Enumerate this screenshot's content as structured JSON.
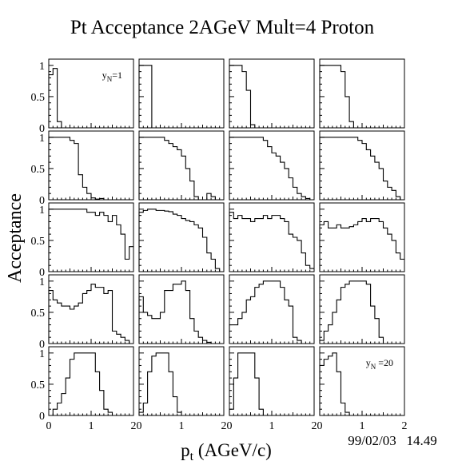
{
  "title": "Pt Acceptance 2AGeV Mult=4 Proton",
  "xlabel_main": "p",
  "xlabel_sub": "t",
  "xlabel_rest": " (AGeV/c)",
  "ylabel": "Acceptance",
  "datestamp": "99/02/03   14.49",
  "chart_data": {
    "type": "histogram-grid",
    "rows": 5,
    "cols": 4,
    "xlim": [
      0,
      2
    ],
    "ylim": [
      0,
      1.1
    ],
    "bin_width": 0.1,
    "x_ticks": [
      {
        "v": 0,
        "label": "0"
      },
      {
        "v": 1,
        "label": "1"
      },
      {
        "v": 2,
        "label": "2"
      }
    ],
    "y_ticks": [
      {
        "v": 0,
        "label": "0"
      },
      {
        "v": 0.5,
        "label": "0.5"
      },
      {
        "v": 1,
        "label": "1"
      }
    ],
    "annotations": [
      {
        "panel": 0,
        "main": "y",
        "sub": "N",
        "rest": "=1"
      },
      {
        "panel": 19,
        "main": "y",
        "sub": "N",
        "rest": " =20"
      }
    ],
    "panels": [
      {
        "values": [
          0.85,
          0.95,
          0.1,
          0,
          0,
          0,
          0,
          0,
          0,
          0,
          0,
          0,
          0,
          0,
          0,
          0,
          0,
          0,
          0,
          0
        ]
      },
      {
        "values": [
          1,
          1,
          1,
          0,
          0,
          0,
          0,
          0,
          0,
          0,
          0,
          0,
          0,
          0,
          0,
          0,
          0,
          0,
          0,
          0
        ]
      },
      {
        "values": [
          1,
          1,
          1,
          0.9,
          0.6,
          0.05,
          0,
          0,
          0,
          0,
          0,
          0,
          0,
          0,
          0,
          0,
          0,
          0,
          0,
          0
        ]
      },
      {
        "values": [
          1,
          1,
          1,
          1,
          1,
          0.9,
          0.5,
          0.1,
          0,
          0,
          0,
          0,
          0,
          0,
          0,
          0,
          0,
          0,
          0,
          0
        ]
      },
      {
        "values": [
          1,
          1,
          1,
          1,
          1,
          0.95,
          0.9,
          0.4,
          0.2,
          0.1,
          0.03,
          0.01,
          0.02,
          0,
          0,
          0,
          0,
          0,
          0,
          0
        ]
      },
      {
        "values": [
          1,
          1,
          1,
          1,
          1,
          1,
          0.95,
          0.9,
          0.85,
          0.8,
          0.7,
          0.5,
          0.3,
          0.05,
          0,
          0,
          0.1,
          0.05,
          0,
          0
        ]
      },
      {
        "values": [
          1,
          1,
          1,
          1,
          1,
          1,
          1,
          1,
          0.95,
          0.85,
          0.75,
          0.7,
          0.6,
          0.5,
          0.35,
          0.2,
          0.1,
          0.05,
          0.02,
          0
        ]
      },
      {
        "values": [
          1,
          1,
          1,
          1,
          1,
          1,
          1,
          1,
          1,
          0.95,
          0.9,
          0.8,
          0.7,
          0.6,
          0.5,
          0.3,
          0.2,
          0.15,
          0.05,
          0
        ]
      },
      {
        "values": [
          1,
          1,
          1,
          1,
          1,
          1,
          1,
          1,
          1,
          0.95,
          0.95,
          0.9,
          0.95,
          0.9,
          0.8,
          0.9,
          0.75,
          0.6,
          0.2,
          0.4
        ]
      },
      {
        "values": [
          0.95,
          0.98,
          1,
          1,
          0.98,
          0.98,
          0.97,
          0.96,
          0.92,
          0.9,
          0.85,
          0.82,
          0.8,
          0.75,
          0.7,
          0.55,
          0.3,
          0.2,
          0.05,
          0
        ]
      },
      {
        "values": [
          0.95,
          0.85,
          0.9,
          0.85,
          0.85,
          0.8,
          0.85,
          0.85,
          0.9,
          0.85,
          0.9,
          0.9,
          0.85,
          0.8,
          0.6,
          0.55,
          0.5,
          0.3,
          0.1,
          0.05
        ]
      },
      {
        "values": [
          0.75,
          0.8,
          0.7,
          0.7,
          0.75,
          0.7,
          0.7,
          0.72,
          0.75,
          0.8,
          0.85,
          0.8,
          0.85,
          0.85,
          0.8,
          0.7,
          0.6,
          0.5,
          0.3,
          0.2
        ]
      },
      {
        "values": [
          0.85,
          0.7,
          0.65,
          0.6,
          0.6,
          0.55,
          0.6,
          0.65,
          0.8,
          0.85,
          0.95,
          0.9,
          0.9,
          0.8,
          0.85,
          0.2,
          0.15,
          0.1,
          0.05,
          0
        ]
      },
      {
        "values": [
          0.75,
          0.5,
          0.45,
          0.4,
          0.4,
          0.5,
          0.85,
          0.85,
          0.95,
          0.95,
          1,
          0.85,
          0.4,
          0.2,
          0.1,
          0.05,
          0.02,
          0,
          0,
          0
        ]
      },
      {
        "values": [
          0.3,
          0.3,
          0.4,
          0.5,
          0.7,
          0.75,
          0.9,
          0.95,
          1,
          1,
          1,
          1,
          0.9,
          0.7,
          0.6,
          0.1,
          0.05,
          0,
          0,
          0
        ]
      },
      {
        "values": [
          0.05,
          0.2,
          0.3,
          0.5,
          0.7,
          0.9,
          0.95,
          1,
          1,
          1,
          1,
          0.95,
          0.6,
          0.4,
          0.1,
          0,
          0,
          0,
          0,
          0
        ]
      },
      {
        "values": [
          0,
          0.1,
          0.2,
          0.35,
          0.6,
          0.9,
          1,
          1,
          1,
          1,
          1,
          0.7,
          0.4,
          0.1,
          0.05,
          0,
          0,
          0,
          0,
          0
        ]
      },
      {
        "values": [
          0.05,
          0.2,
          0.7,
          0.95,
          1,
          1,
          1,
          0.7,
          0.3,
          0.05,
          0,
          0,
          0,
          0,
          0,
          0,
          0,
          0,
          0,
          0
        ]
      },
      {
        "values": [
          0.1,
          0.6,
          1,
          1,
          1,
          1,
          0.6,
          0.1,
          0,
          0,
          0,
          0,
          0,
          0,
          0,
          0,
          0,
          0,
          0,
          0
        ]
      },
      {
        "values": [
          0.8,
          0.9,
          0.95,
          1,
          0.7,
          0.2,
          0.05,
          0,
          0,
          0,
          0,
          0,
          0,
          0,
          0,
          0,
          0,
          0,
          0,
          0
        ]
      }
    ]
  }
}
